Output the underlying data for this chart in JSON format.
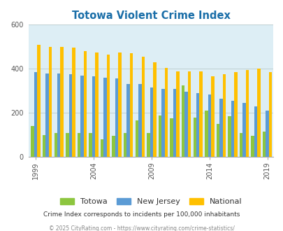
{
  "title": "Totowa Violent Crime Index",
  "subtitle": "Crime Index corresponds to incidents per 100,000 inhabitants",
  "footer": "© 2025 CityRating.com - https://www.cityrating.com/crime-statistics/",
  "years": [
    1999,
    2000,
    2001,
    2002,
    2003,
    2004,
    2005,
    2006,
    2007,
    2008,
    2009,
    2010,
    2011,
    2012,
    2013,
    2014,
    2015,
    2016,
    2017,
    2018,
    2019
  ],
  "totowa": [
    140,
    100,
    110,
    110,
    110,
    110,
    80,
    95,
    110,
    165,
    110,
    190,
    175,
    325,
    180,
    210,
    150,
    185,
    110,
    95,
    115
  ],
  "new_jersey": [
    385,
    380,
    380,
    375,
    370,
    365,
    360,
    358,
    330,
    330,
    315,
    310,
    310,
    295,
    290,
    285,
    265,
    255,
    245,
    230,
    210
  ],
  "national": [
    510,
    500,
    500,
    495,
    480,
    475,
    465,
    475,
    470,
    455,
    430,
    405,
    390,
    390,
    390,
    365,
    375,
    385,
    395,
    400,
    385
  ],
  "colors": {
    "totowa": "#8dc63f",
    "new_jersey": "#5b9bd5",
    "national": "#ffc000",
    "background": "#ddeef5",
    "title": "#1a6ea8",
    "subtitle": "#333333",
    "footer": "#888888"
  },
  "ylim": [
    0,
    600
  ],
  "yticks": [
    0,
    200,
    400,
    600
  ],
  "bar_width": 0.27,
  "x_tick_labels": [
    "1999",
    "2004",
    "2009",
    "2014",
    "2019"
  ],
  "x_tick_positions": [
    0,
    5,
    10,
    15,
    20
  ]
}
